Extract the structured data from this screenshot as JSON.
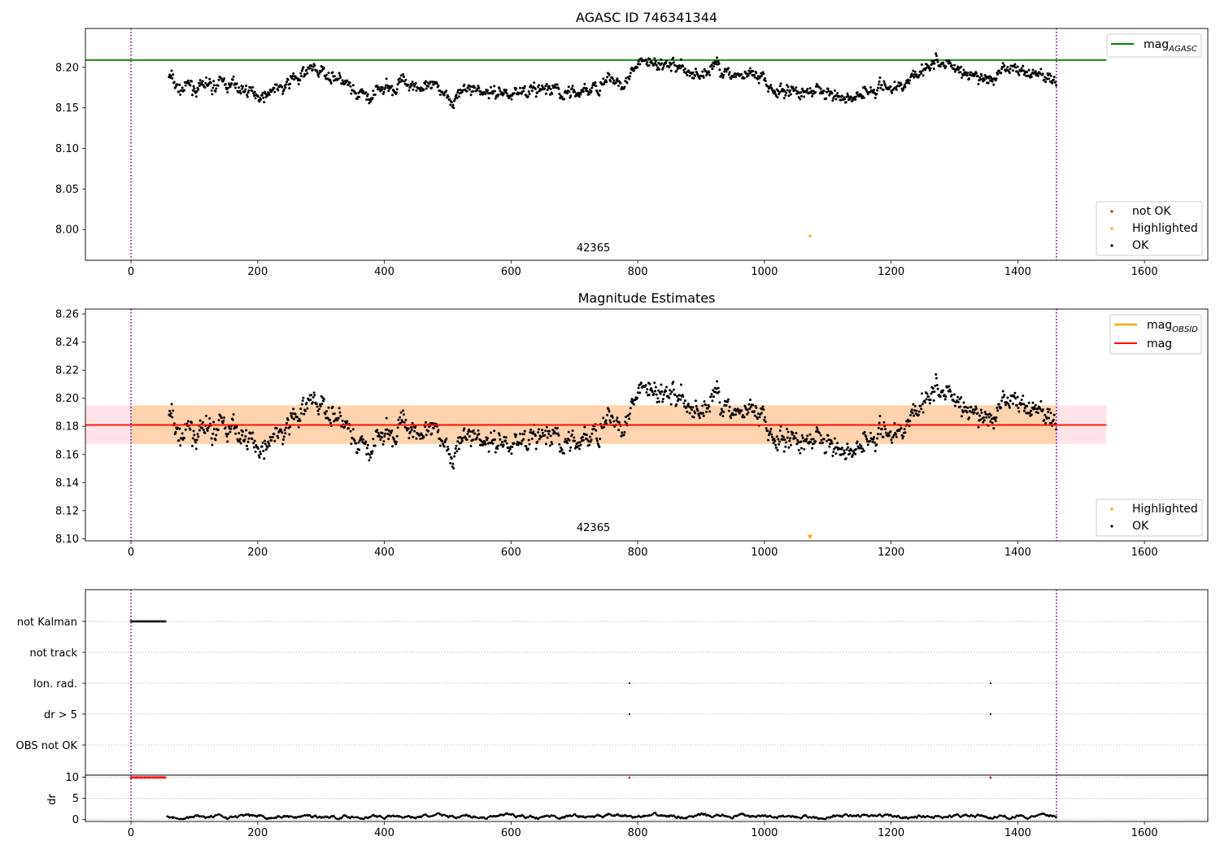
{
  "chart_data": [
    {
      "type": "scatter",
      "title": "AGASC ID 746341344",
      "xlim": [
        -72,
        1700
      ],
      "ylim": [
        7.962,
        8.248
      ],
      "x_ticks": [
        0,
        200,
        400,
        600,
        800,
        1000,
        1200,
        1400,
        1600
      ],
      "y_ticks": [
        8.0,
        8.05,
        8.1,
        8.15,
        8.2
      ],
      "y_tick_decimals": 2,
      "vlines": [
        0,
        1461
      ],
      "hlines": [
        {
          "series": "mag_AGASC",
          "y": 8.209,
          "x_range": [
            -72,
            1540
          ],
          "color": "#008000"
        }
      ],
      "annotation": {
        "text": "42365",
        "x": 730,
        "y": 7.978
      },
      "highlighted_point": {
        "x": 1072,
        "y": 7.992
      },
      "ok_range": [
        60,
        1461
      ],
      "ok_levels": [
        [
          60,
          8.19
        ],
        [
          75,
          8.172
        ],
        [
          110,
          8.176
        ],
        [
          140,
          8.178
        ],
        [
          170,
          8.175
        ],
        [
          195,
          8.168
        ],
        [
          220,
          8.172
        ],
        [
          245,
          8.176
        ],
        [
          265,
          8.188
        ],
        [
          285,
          8.197
        ],
        [
          305,
          8.194
        ],
        [
          325,
          8.19
        ],
        [
          340,
          8.18
        ],
        [
          355,
          8.158
        ],
        [
          380,
          8.164
        ],
        [
          405,
          8.175
        ],
        [
          430,
          8.18
        ],
        [
          455,
          8.182
        ],
        [
          480,
          8.172
        ],
        [
          510,
          8.168
        ],
        [
          540,
          8.172
        ],
        [
          580,
          8.17
        ],
        [
          620,
          8.172
        ],
        [
          660,
          8.168
        ],
        [
          700,
          8.166
        ],
        [
          730,
          8.174
        ],
        [
          760,
          8.184
        ],
        [
          790,
          8.19
        ],
        [
          805,
          8.204
        ],
        [
          830,
          8.203
        ],
        [
          870,
          8.2
        ],
        [
          890,
          8.188
        ],
        [
          920,
          8.2
        ],
        [
          945,
          8.196
        ],
        [
          970,
          8.186
        ],
        [
          1000,
          8.18
        ],
        [
          1020,
          8.17
        ],
        [
          1050,
          8.172
        ],
        [
          1080,
          8.171
        ],
        [
          1110,
          8.168
        ],
        [
          1130,
          8.164
        ],
        [
          1160,
          8.174
        ],
        [
          1180,
          8.178
        ],
        [
          1200,
          8.17
        ],
        [
          1220,
          8.176
        ],
        [
          1240,
          8.195
        ],
        [
          1260,
          8.206
        ],
        [
          1290,
          8.205
        ],
        [
          1310,
          8.196
        ],
        [
          1340,
          8.187
        ],
        [
          1370,
          8.186
        ],
        [
          1390,
          8.198
        ],
        [
          1420,
          8.194
        ],
        [
          1440,
          8.19
        ],
        [
          1461,
          8.182
        ]
      ],
      "legend": {
        "position": "top-right",
        "entries": [
          {
            "series": "mag_AGASC",
            "label": "mag",
            "sub": "AGASC",
            "color": "#008000"
          }
        ]
      },
      "legend2": {
        "position": "lower-right",
        "entries": [
          {
            "label": "not OK",
            "color": "#ff0000"
          },
          {
            "label": "Highlighted",
            "color": "#ffa500"
          },
          {
            "label": "OK",
            "color": "#000000"
          }
        ]
      }
    },
    {
      "type": "scatter",
      "title": "Magnitude Estimates",
      "xlim": [
        -72,
        1700
      ],
      "ylim": [
        8.0985,
        8.2635
      ],
      "x_ticks": [
        0,
        200,
        400,
        600,
        800,
        1000,
        1200,
        1400,
        1600
      ],
      "y_ticks": [
        8.1,
        8.12,
        8.14,
        8.16,
        8.18,
        8.2,
        8.22,
        8.24,
        8.26
      ],
      "y_tick_decimals": 2,
      "vlines": [
        0,
        1461
      ],
      "mag": 8.181,
      "mag_band": [
        8.1675,
        8.195
      ],
      "mag_obsid_band": [
        8.1675,
        8.195
      ],
      "mag_obsid_x_range": [
        0,
        1461
      ],
      "mag_x_range": [
        -72,
        1540
      ],
      "annotation": {
        "text": "42365",
        "x": 730,
        "y": 8.1055
      },
      "highlighted_point": {
        "x": 1072,
        "y": 8.101
      },
      "legend": {
        "position": "top-right",
        "entries": [
          {
            "label": "mag",
            "sub": "OBSID",
            "color": "#ffa500"
          },
          {
            "label": "mag",
            "sub": "",
            "color": "#ff0000"
          }
        ]
      },
      "legend2": {
        "position": "lower-right",
        "entries": [
          {
            "label": "Highlighted",
            "color": "#ffa500"
          },
          {
            "label": "OK",
            "color": "#000000"
          }
        ]
      }
    },
    {
      "type": "scatter",
      "title": "",
      "xlim": [
        -72,
        1700
      ],
      "x_ticks": [
        0,
        200,
        400,
        600,
        800,
        1000,
        1200,
        1400,
        1600
      ],
      "vlines": [
        0,
        1461
      ],
      "flag_rows": [
        "not Kalman",
        "not track",
        "Ion. rad.",
        "dr > 5",
        "OBS not OK"
      ],
      "flags": {
        "not Kalman": {
          "x_range": [
            0,
            55
          ]
        },
        "Ion. rad.": {
          "x": [
            787,
            1357
          ]
        },
        "dr > 5": {
          "x": [
            787,
            1357
          ]
        }
      },
      "dr": {
        "ylabel": "dr",
        "ylim": [
          -0.5,
          10.5
        ],
        "y_ticks": [
          0,
          5,
          10
        ],
        "clipped_value": 10,
        "clipped_x_range": [
          0,
          55
        ],
        "clipped_points": [
          787,
          1357
        ],
        "series_x_range": [
          57,
          1461
        ]
      }
    }
  ]
}
